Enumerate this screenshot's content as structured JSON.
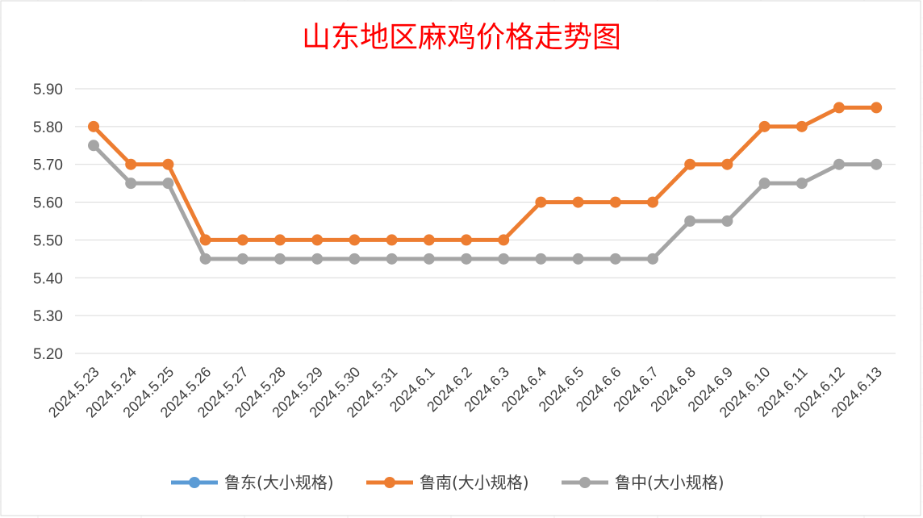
{
  "chart_data": {
    "type": "line",
    "title": "山东地区麻鸡价格走势图",
    "xlabel": "",
    "ylabel": "",
    "categories": [
      "2024.5.23",
      "2024.5.24",
      "2024.5.25",
      "2024.5.26",
      "2024.5.27",
      "2024.5.28",
      "2024.5.29",
      "2024.5.30",
      "2024.5.31",
      "2024.6.1",
      "2024.6.2",
      "2024.6.3",
      "2024.6.4",
      "2024.6.5",
      "2024.6.6",
      "2024.6.7",
      "2024.6.8",
      "2024.6.9",
      "2024.6.10",
      "2024.6.11",
      "2024.6.12",
      "2024.6.13"
    ],
    "ylim": [
      5.2,
      5.9
    ],
    "yticks": [
      "5.20",
      "5.30",
      "5.40",
      "5.50",
      "5.60",
      "5.70",
      "5.80",
      "5.90"
    ],
    "grid": true,
    "legend_position": "bottom",
    "series": [
      {
        "name": "鲁东(大小规格)",
        "color": "#5b9bd5",
        "values": [
          null,
          null,
          null,
          null,
          null,
          null,
          null,
          null,
          null,
          null,
          null,
          null,
          null,
          null,
          null,
          null,
          null,
          null,
          null,
          null,
          null,
          null
        ]
      },
      {
        "name": "鲁南(大小规格)",
        "color": "#ed7d31",
        "values": [
          5.8,
          5.7,
          5.7,
          5.5,
          5.5,
          5.5,
          5.5,
          5.5,
          5.5,
          5.5,
          5.5,
          5.5,
          5.6,
          5.6,
          5.6,
          5.6,
          5.7,
          5.7,
          5.8,
          5.8,
          5.85,
          5.85
        ]
      },
      {
        "name": "鲁中(大小规格)",
        "color": "#a5a5a5",
        "values": [
          5.75,
          5.65,
          5.65,
          5.45,
          5.45,
          5.45,
          5.45,
          5.45,
          5.45,
          5.45,
          5.45,
          5.45,
          5.45,
          5.45,
          5.45,
          5.45,
          5.55,
          5.55,
          5.65,
          5.65,
          5.7,
          5.7
        ]
      }
    ]
  }
}
